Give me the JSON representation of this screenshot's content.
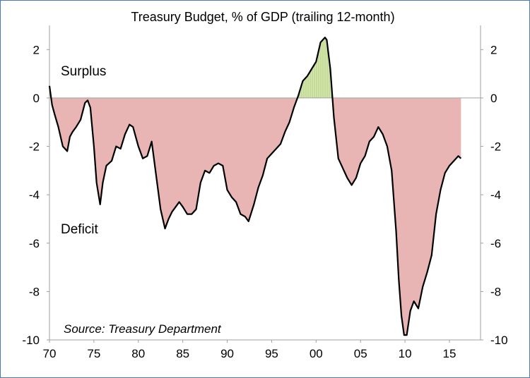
{
  "chart_data": {
    "type": "area",
    "title": "Treasury Budget, % of GDP (trailing 12-month)",
    "xlabel": "",
    "ylabel": "",
    "ylim": [
      -10,
      3
    ],
    "xlim": [
      1970,
      2016.5
    ],
    "x_ticks": [
      1970,
      1975,
      1980,
      1985,
      1990,
      1995,
      2000,
      2005,
      2010,
      2015
    ],
    "x_tick_labels": [
      "70",
      "75",
      "80",
      "85",
      "90",
      "95",
      "00",
      "05",
      "10",
      "15"
    ],
    "y_ticks": [
      2,
      0,
      -2,
      -4,
      -6,
      -8,
      -10
    ],
    "annotations": {
      "surplus": "Surplus",
      "deficit": "Deficit",
      "source": "Source: Treasury Department"
    },
    "colors": {
      "line": "#000000",
      "deficit_fill": "#e8b4b4",
      "surplus_fill": "#d6e8b0",
      "surplus_hatch": "#a8c878",
      "axis": "#a0a0a0"
    },
    "series": [
      {
        "x": [
          1970.0,
          1970.3,
          1970.6,
          1971.0,
          1971.5,
          1972.0,
          1972.3,
          1972.6,
          1973.0,
          1973.5,
          1974.0,
          1974.3,
          1974.6,
          1975.0,
          1975.3,
          1975.7,
          1976.0,
          1976.4,
          1977.0,
          1977.5,
          1978.0,
          1978.5,
          1979.0,
          1979.4,
          1980.0,
          1980.5,
          1981.0,
          1981.5,
          1982.0,
          1982.5,
          1983.0,
          1983.4,
          1983.8,
          1984.2,
          1984.6,
          1985.0,
          1985.5,
          1986.0,
          1986.5,
          1987.0,
          1987.5,
          1988.0,
          1988.5,
          1989.0,
          1989.5,
          1990.0,
          1990.5,
          1991.0,
          1991.5,
          1992.0,
          1992.4,
          1993.0,
          1993.5,
          1994.0,
          1994.5,
          1995.0,
          1995.5,
          1996.0,
          1996.5,
          1997.0,
          1997.5,
          1998.0,
          1998.5,
          1999.0,
          1999.5,
          2000.0,
          2000.5,
          2001.0,
          2001.2,
          2001.6,
          2002.0,
          2002.5,
          2003.0,
          2003.5,
          2004.0,
          2004.5,
          2005.0,
          2005.5,
          2006.0,
          2006.5,
          2007.0,
          2007.5,
          2008.0,
          2008.5,
          2009.0,
          2009.3,
          2009.6,
          2009.9,
          2010.2,
          2010.6,
          2011.0,
          2011.5,
          2012.0,
          2012.5,
          2013.0,
          2013.5,
          2014.0,
          2014.5,
          2015.0,
          2015.5,
          2016.0,
          2016.3
        ],
        "y": [
          0.5,
          -0.3,
          -0.7,
          -1.2,
          -2.0,
          -2.2,
          -1.6,
          -1.4,
          -1.2,
          -0.9,
          -0.2,
          -0.1,
          -0.4,
          -2.0,
          -3.5,
          -4.4,
          -3.5,
          -2.8,
          -2.6,
          -2.0,
          -2.1,
          -1.5,
          -1.1,
          -1.2,
          -2.0,
          -2.5,
          -2.4,
          -1.8,
          -3.2,
          -4.6,
          -5.4,
          -5.0,
          -4.7,
          -4.5,
          -4.3,
          -4.5,
          -4.8,
          -4.8,
          -4.6,
          -3.5,
          -3.0,
          -3.1,
          -2.8,
          -2.7,
          -2.8,
          -3.8,
          -4.1,
          -4.3,
          -4.8,
          -4.9,
          -5.1,
          -4.4,
          -3.7,
          -3.2,
          -2.5,
          -2.3,
          -2.1,
          -1.9,
          -1.4,
          -1.0,
          -0.4,
          0.1,
          0.7,
          0.9,
          1.2,
          1.5,
          2.3,
          2.5,
          2.4,
          1.2,
          -0.8,
          -2.5,
          -2.9,
          -3.3,
          -3.6,
          -3.3,
          -2.7,
          -2.4,
          -1.8,
          -1.6,
          -1.2,
          -1.5,
          -2.0,
          -3.0,
          -5.5,
          -7.5,
          -9.0,
          -9.8,
          -9.8,
          -8.8,
          -8.4,
          -8.7,
          -7.8,
          -7.2,
          -6.5,
          -4.8,
          -3.8,
          -3.1,
          -2.8,
          -2.6,
          -2.4,
          -2.5
        ]
      }
    ]
  }
}
